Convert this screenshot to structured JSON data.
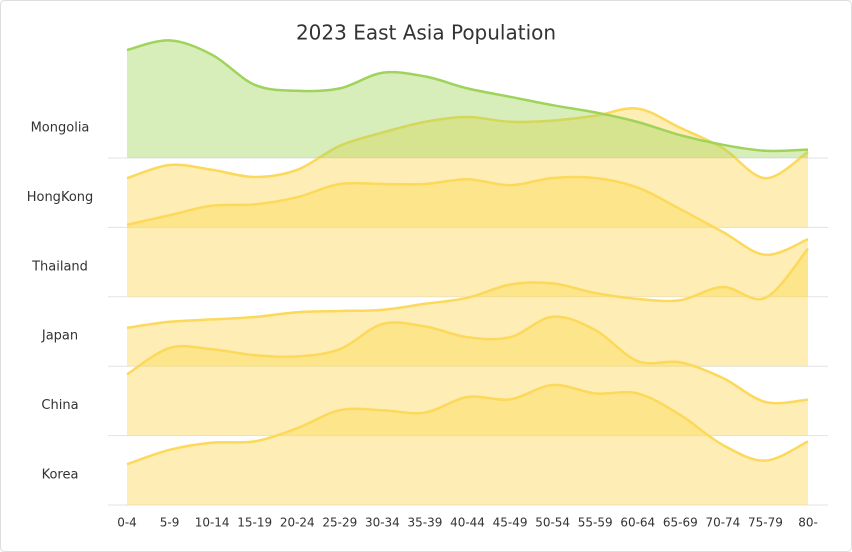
{
  "chart_data": {
    "type": "ridgeline",
    "title": "2023 East Asia Population",
    "categories": [
      "0-4",
      "5-9",
      "10-14",
      "15-19",
      "20-24",
      "25-29",
      "30-34",
      "35-39",
      "40-44",
      "45-49",
      "50-54",
      "55-59",
      "60-64",
      "65-69",
      "70-74",
      "75-79",
      "80-"
    ],
    "ylim": [
      0,
      100
    ],
    "series": [
      {
        "name": "Mongolia",
        "color": "#9fd35a",
        "values": [
          90,
          98,
          86,
          61,
          56,
          58,
          71,
          68,
          58,
          51,
          44,
          38,
          30,
          19,
          11,
          6,
          7
        ]
      },
      {
        "name": "HongKong",
        "color": "#fcd95a",
        "values": [
          41,
          52,
          48,
          42,
          48,
          68,
          79,
          88,
          92,
          88,
          89,
          93,
          99,
          83,
          66,
          41,
          63
        ]
      },
      {
        "name": "Thailand",
        "color": "#fcd95a",
        "values": [
          60,
          68,
          76,
          77,
          83,
          94,
          94,
          94,
          98,
          93,
          99,
          99,
          91,
          73,
          54,
          35,
          48
        ]
      },
      {
        "name": "Japan",
        "color": "#fcd95a",
        "values": [
          32,
          37,
          39,
          41,
          45,
          46,
          47,
          52,
          57,
          68,
          69,
          61,
          56,
          55,
          66,
          57,
          98
        ]
      },
      {
        "name": "China",
        "color": "#fcd95a",
        "values": [
          51,
          73,
          72,
          67,
          66,
          72,
          93,
          91,
          82,
          82,
          99,
          88,
          62,
          61,
          48,
          28,
          30
        ]
      },
      {
        "name": "Korea",
        "color": "#fcd95a",
        "values": [
          34,
          46,
          52,
          53,
          64,
          79,
          79,
          77,
          90,
          88,
          100,
          93,
          93,
          75,
          50,
          37,
          53
        ]
      }
    ]
  }
}
